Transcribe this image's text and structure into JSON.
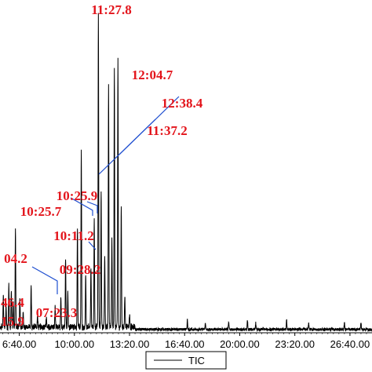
{
  "chart_data": {
    "type": "line",
    "title": "",
    "xlabel": "",
    "ylabel": "",
    "x_unit": "time (mm:ss.s)",
    "xlim_seconds": [
      330,
      1680
    ],
    "ylim": [
      0,
      100
    ],
    "grid": false,
    "legend": {
      "placement": "bottom-center",
      "entries": [
        "TIC"
      ]
    },
    "x_ticks": [
      "6:40.00",
      "10:00.00",
      "13:20.00",
      "16:40.00",
      "20:00.00",
      "23:20.00",
      "26:40.00"
    ],
    "x_tick_seconds": [
      400,
      600,
      800,
      1000,
      1200,
      1400,
      1600
    ],
    "series": [
      {
        "name": "TIC",
        "color": "#000000",
        "peaks": [
          {
            "t": 342,
            "y": 10
          },
          {
            "t": 352,
            "y": 7
          },
          {
            "t": 362,
            "y": 14
          },
          {
            "t": 371,
            "y": 11
          },
          {
            "t": 378,
            "y": 8
          },
          {
            "t": 386,
            "y": 31
          },
          {
            "t": 402,
            "y": 9
          },
          {
            "t": 414,
            "y": 4
          },
          {
            "t": 443,
            "y": 13
          },
          {
            "t": 466,
            "y": 4
          },
          {
            "t": 498,
            "y": 3
          },
          {
            "t": 530,
            "y": 6
          },
          {
            "t": 551,
            "y": 9
          },
          {
            "t": 568,
            "y": 21
          },
          {
            "t": 576,
            "y": 11
          },
          {
            "t": 611,
            "y": 31
          },
          {
            "t": 625,
            "y": 55
          },
          {
            "t": 641,
            "y": 16
          },
          {
            "t": 660,
            "y": 19
          },
          {
            "t": 672,
            "y": 34
          },
          {
            "t": 687,
            "y": 97
          },
          {
            "t": 697,
            "y": 43
          },
          {
            "t": 710,
            "y": 22
          },
          {
            "t": 724,
            "y": 75
          },
          {
            "t": 736,
            "y": 28
          },
          {
            "t": 745,
            "y": 81
          },
          {
            "t": 758,
            "y": 83
          },
          {
            "t": 770,
            "y": 38
          },
          {
            "t": 783,
            "y": 10
          },
          {
            "t": 800,
            "y": 4
          },
          {
            "t": 1010,
            "y": 3
          },
          {
            "t": 1075,
            "y": 2
          },
          {
            "t": 1160,
            "y": 2
          },
          {
            "t": 1228,
            "y": 3
          },
          {
            "t": 1258,
            "y": 2
          },
          {
            "t": 1370,
            "y": 3
          },
          {
            "t": 1450,
            "y": 2
          },
          {
            "t": 1580,
            "y": 2
          },
          {
            "t": 1640,
            "y": 2
          }
        ]
      }
    ],
    "peak_labels": [
      {
        "text": "11:27.8",
        "t": 687,
        "y": 97
      },
      {
        "text": "12:04.7",
        "t": 724,
        "y": 75
      },
      {
        "text": "12:38.4",
        "t": 758,
        "y": 83
      },
      {
        "text": "11:37.2",
        "t": 697,
        "y": 43
      },
      {
        "text": "10:25.9",
        "t": 625,
        "y": 55
      },
      {
        "text": "10:25.7",
        "t": 625,
        "y": 55
      },
      {
        "text": "10:11.2",
        "t": 611,
        "y": 31
      },
      {
        "text": "09:28.2",
        "t": 568,
        "y": 21
      },
      {
        "text": "04.2",
        "t": 386,
        "y": 31
      },
      {
        "text": "07:23.3",
        "t": 443,
        "y": 13
      },
      {
        "text": "46.4",
        "t": 362,
        "y": 14
      },
      {
        "text": "15.9",
        "t": 352,
        "y": 7
      }
    ]
  }
}
